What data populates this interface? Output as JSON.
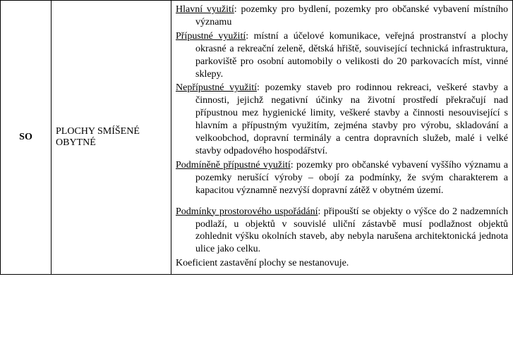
{
  "row": {
    "code": "SO",
    "name": "PLOCHY SMÍŠENÉ OBYTNÉ",
    "items": [
      {
        "label": "Hlavní využití",
        "text": ": pozemky pro bydlení, pozemky pro občanské vybavení místního významu"
      },
      {
        "label": "Přípustné využití",
        "text": ": místní a účelové komunikace,  veřejná prostranství a plochy okrasné a rekreační zeleně, dětská hřiště, související technická infrastruktura,  parkoviště pro osobní automobily o velikosti do 20 parkovacích míst, vinné sklepy."
      },
      {
        "label": "Nepřípustné využití",
        "text": ": pozemky staveb pro rodinnou rekreaci, veškeré stavby a činnosti, jejichž negativní účinky na životní prostředí překračují nad přípustnou mez hygienické limity, veškeré stavby a činnosti nesouvisející s hlavním a přípustným využitím, zejména stavby pro výrobu, skladování a velkoobchod, dopravní terminály a centra dopravních služeb, malé i velké stavby odpadového hospodářství."
      },
      {
        "label": "Podmíněně přípustné využití",
        "text": ": pozemky pro občanské vybavení vyššího významu a pozemky nerušící výroby – obojí za podmínky, že svým charakterem a kapacitou významně nezvýší dopravní zátěž v obytném území."
      },
      {
        "spacer": true
      },
      {
        "label": "Podmínky prostorového uspořádání",
        "text": ": připouští se objekty o výšce do 2 nadzemních podlaží, u objektů v souvislé uliční zástavbě musí podlažnost objektů zohlednit výšku okolních staveb, aby nebyla narušena architektonická jednota ulice jako celku."
      },
      {
        "plain": "Koeficient zastavění plochy se nestanovuje."
      }
    ]
  },
  "style": {
    "font_family": "Times New Roman",
    "font_size_pt": 11,
    "text_color": "#000000",
    "background": "#ffffff",
    "border_color": "#000000"
  }
}
